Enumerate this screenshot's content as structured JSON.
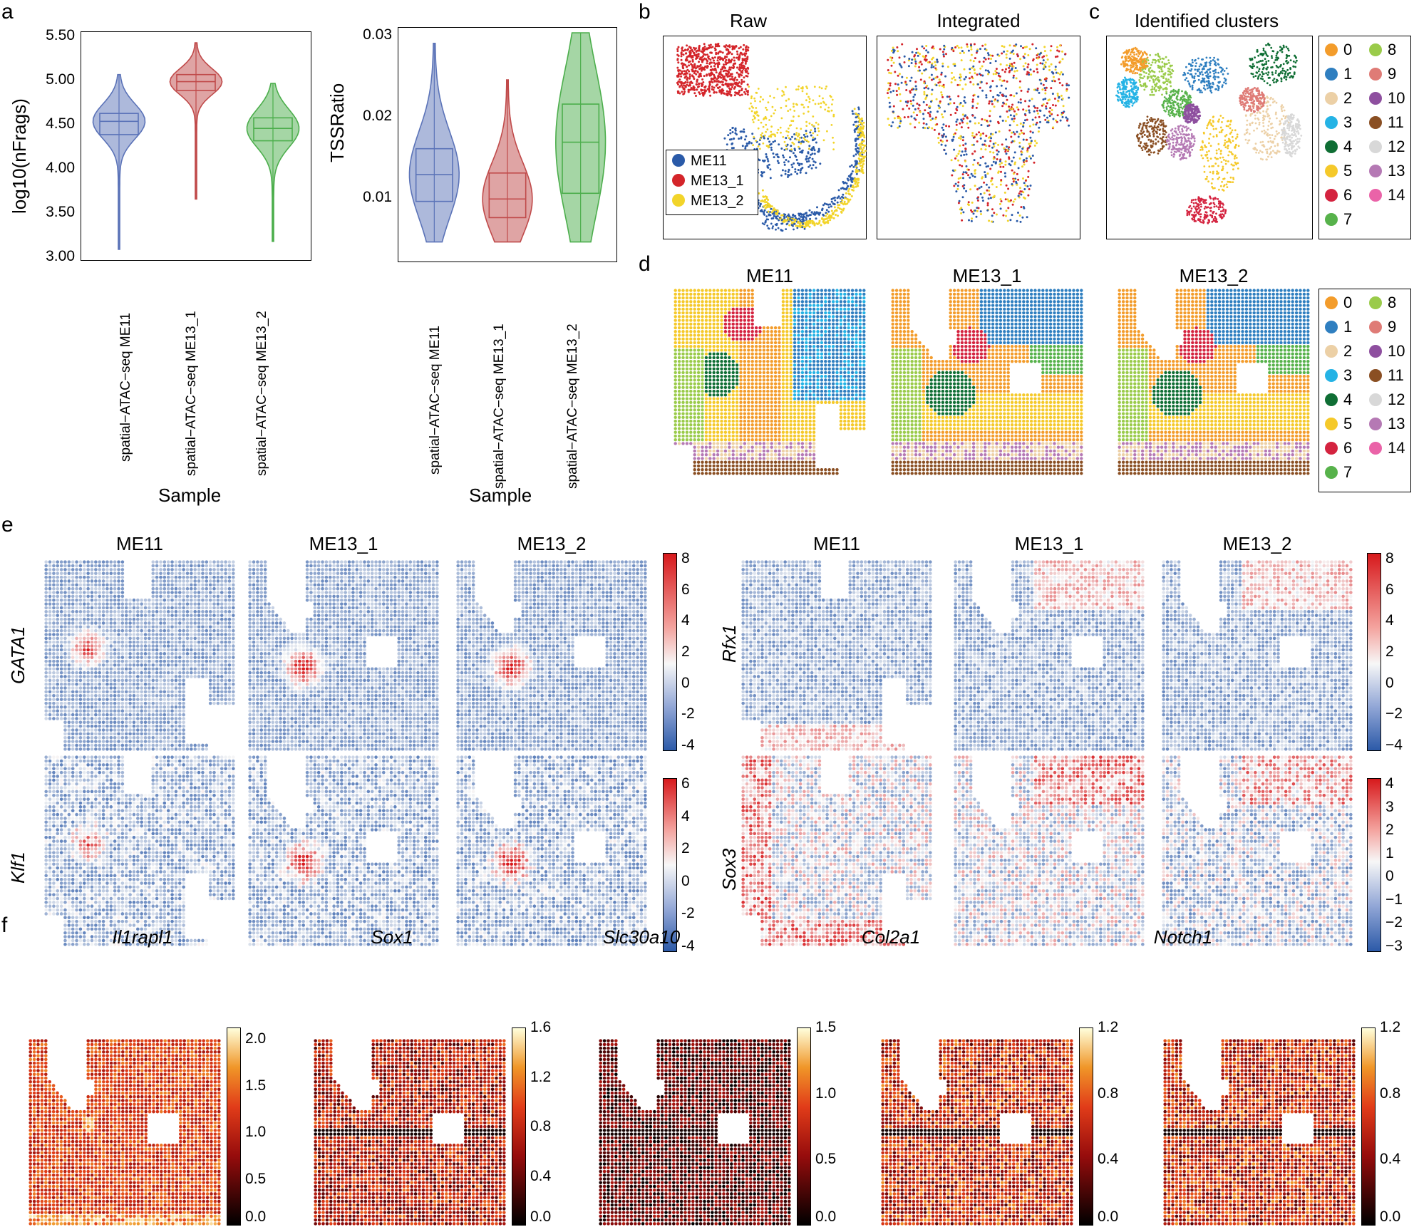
{
  "panel_labels": {
    "a": "a",
    "b": "b",
    "c": "c",
    "d": "d",
    "e": "e",
    "f": "f"
  },
  "colors": {
    "me11": "#2a5aa8",
    "me13_1": "#d4252a",
    "me13_2": "#f2d42a",
    "violin_blue": "#5b73b8",
    "violin_red": "#c04a4a",
    "violin_green": "#4cae4c"
  },
  "panel_a": {
    "xlabel": "Sample",
    "samples": [
      "spatial−ATAC−seq ME11",
      "spatial−ATAC−seq ME13_1",
      "spatial−ATAC−seq ME13_2"
    ],
    "left": {
      "ylabel": "log10(nFrags)",
      "yticks": [
        "5.50",
        "5.00",
        "4.50",
        "4.00",
        "3.50",
        "3.00"
      ]
    },
    "right": {
      "ylabel": "TSSRatio",
      "yticks": [
        "0.03",
        "0.02",
        "0.01"
      ]
    }
  },
  "chart_data": [
    {
      "type": "violin",
      "title": "",
      "ylabel": "log10(nFrags)",
      "xlabel": "Sample",
      "ylim": [
        2.95,
        5.55
      ],
      "categories": [
        "spatial−ATAC−seq ME11",
        "spatial−ATAC−seq ME13_1",
        "spatial−ATAC−seq ME13_2"
      ],
      "series": [
        {
          "name": "ME11",
          "min": 3.08,
          "q1": 4.38,
          "median": 4.53,
          "q3": 4.62,
          "max": 5.06
        },
        {
          "name": "ME13_1",
          "min": 3.65,
          "q1": 4.88,
          "median": 4.98,
          "q3": 5.06,
          "max": 5.42
        },
        {
          "name": "ME13_2",
          "min": 3.17,
          "q1": 4.31,
          "median": 4.45,
          "q3": 4.57,
          "max": 4.96
        }
      ]
    },
    {
      "type": "violin",
      "title": "",
      "ylabel": "TSSRatio",
      "xlabel": "Sample",
      "ylim": [
        0.002,
        0.031
      ],
      "categories": [
        "spatial−ATAC−seq ME11",
        "spatial−ATAC−seq ME13_1",
        "spatial−ATAC−seq ME13_2"
      ],
      "series": [
        {
          "name": "ME11",
          "min": 0.0045,
          "q1": 0.0095,
          "median": 0.0128,
          "q3": 0.016,
          "max": 0.029
        },
        {
          "name": "ME13_1",
          "min": 0.0045,
          "q1": 0.0075,
          "median": 0.0098,
          "q3": 0.013,
          "max": 0.0245
        },
        {
          "name": "ME13_2",
          "min": 0.0045,
          "q1": 0.0105,
          "median": 0.0168,
          "q3": 0.0215,
          "max": 0.0303
        }
      ]
    }
  ],
  "panel_b": {
    "raw_title": "Raw",
    "integrated_title": "Integrated",
    "legend": [
      "ME11",
      "ME13_1",
      "ME13_2"
    ]
  },
  "panel_c": {
    "title": "Identified clusters"
  },
  "clusters": {
    "labels": [
      "0",
      "1",
      "2",
      "3",
      "4",
      "5",
      "6",
      "7",
      "8",
      "9",
      "10",
      "11",
      "12",
      "13",
      "14"
    ],
    "colors": [
      "#f39c2b",
      "#2f7fc0",
      "#ecd0a6",
      "#25b3e5",
      "#0f6e34",
      "#f5c92a",
      "#d4233f",
      "#57b24b",
      "#9acb4a",
      "#df7b76",
      "#8e4f9f",
      "#8a4f23",
      "#d8d8d8",
      "#b579b4",
      "#ea63a8"
    ]
  },
  "panel_d": {
    "titles": [
      "ME11",
      "ME13_1",
      "ME13_2"
    ]
  },
  "panel_e": {
    "titles": [
      "ME11",
      "ME13_1",
      "ME13_2"
    ],
    "genes_left": [
      "GATA1",
      "Klf1"
    ],
    "genes_right": [
      "Rfx1",
      "Sox3"
    ],
    "cbar_gata1": [
      "8",
      "6",
      "4",
      "2",
      "0",
      "-2",
      "-4"
    ],
    "cbar_klf1": [
      "6",
      "4",
      "2",
      "0",
      "-2",
      "-4"
    ],
    "cbar_rfx1": [
      "8",
      "6",
      "4",
      "2",
      "0",
      "−2",
      "−4"
    ],
    "cbar_sox3": [
      "4",
      "3",
      "2",
      "1",
      "0",
      "−1",
      "−2",
      "−3"
    ]
  },
  "panel_f": {
    "genes": [
      "Il1rapl1",
      "Sox1",
      "Slc30a10",
      "Col2a1",
      "Notch1"
    ],
    "cbars": [
      [
        "2.0",
        "1.5",
        "1.0",
        "0.5",
        "0.0"
      ],
      [
        "1.6",
        "1.2",
        "0.8",
        "0.4",
        "0.0"
      ],
      [
        "1.5",
        "1.0",
        "0.5",
        "0.0"
      ],
      [
        "1.2",
        "0.8",
        "0.4",
        "0.0"
      ],
      [
        "1.2",
        "0.8",
        "0.4",
        "0.0"
      ]
    ]
  }
}
